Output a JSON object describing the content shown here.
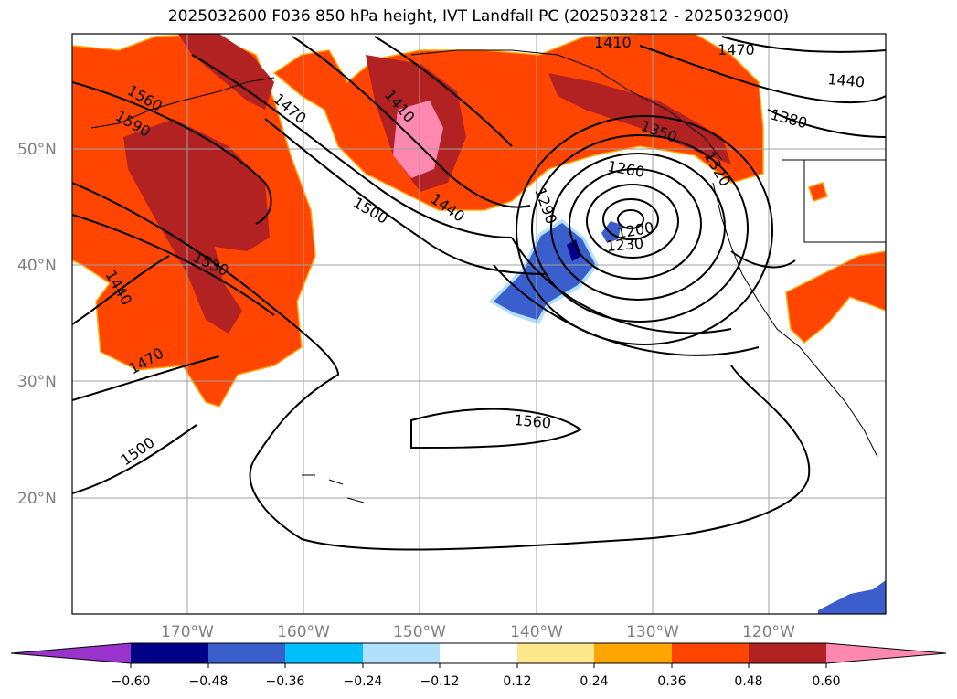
{
  "title": "2025032600 F036 850 hPa height, IVT Landfall PC (2025032812 - 2025032900)",
  "lat_ticks": [
    "50°N",
    "40°N",
    "30°N",
    "20°N"
  ],
  "lon_ticks": [
    "170°W",
    "160°W",
    "150°W",
    "140°W",
    "130°W",
    "120°W"
  ],
  "contour_labels": [
    "1560",
    "1590",
    "1470",
    "1410",
    "1440",
    "1500",
    "1530",
    "1440",
    "1470",
    "1500",
    "1260",
    "1290",
    "1230",
    "1200",
    "1560",
    "1470",
    "1440",
    "1380",
    "1410",
    "1350",
    "1320"
  ],
  "colorbar": {
    "labels": [
      "−0.60",
      "−0.48",
      "−0.36",
      "−0.24",
      "−0.12",
      "0.12",
      "0.24",
      "0.36",
      "0.48",
      "0.60"
    ],
    "colors": [
      "#9933cc",
      "#000088",
      "#3a5fcd",
      "#00bfff",
      "#b0e0fa",
      "#ffffff",
      "#ffe88c",
      "#ffa500",
      "#ff4500",
      "#b22222",
      "#ff88b0"
    ]
  },
  "fill_colors": {
    "orange": "#ff4500",
    "darkred": "#b22222",
    "pink": "#ff88b0",
    "blue": "#3a5fcd",
    "navy": "#000088",
    "lightblue": "#b0e0fa",
    "gold": "#ffa500"
  }
}
